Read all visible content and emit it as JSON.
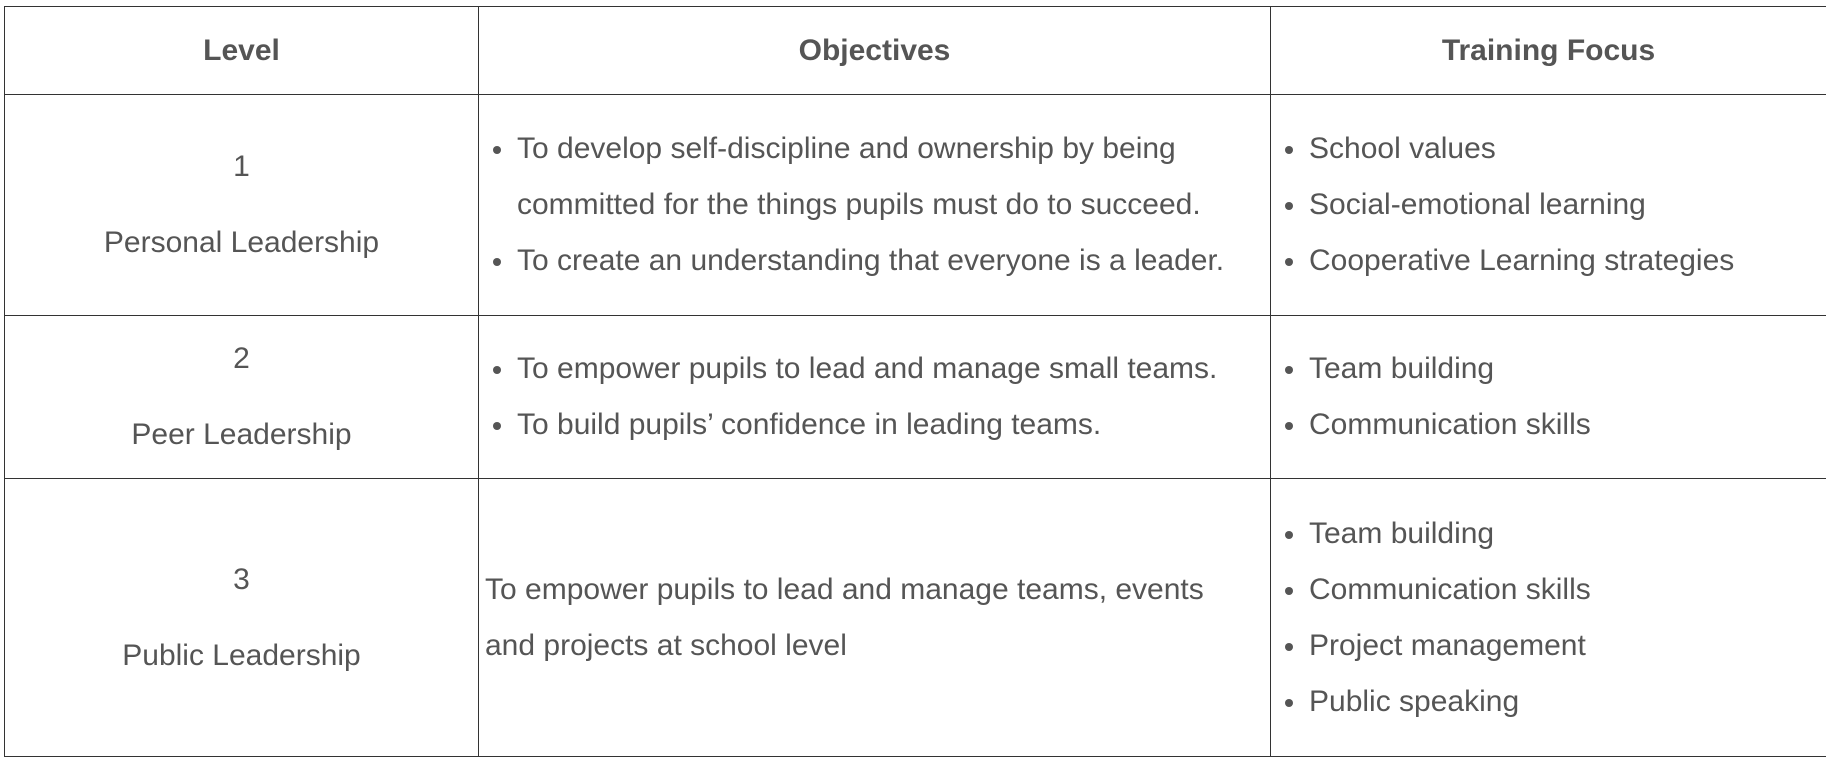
{
  "headers": {
    "level": "Level",
    "objectives": "Objectives",
    "focus": "Training Focus"
  },
  "rows": [
    {
      "num": "1",
      "name": "Personal Leadership",
      "objectives": [
        "To develop self-discipline and ownership by being committed for the things pupils must do to succeed.",
        "To create an understanding that everyone is a leader."
      ],
      "focus": [
        "School values",
        "Social-emotional learning",
        "Cooperative Learning strategies"
      ]
    },
    {
      "num": "2",
      "name": "Peer Leadership",
      "objectives": [
        "To empower pupils to lead and manage small teams.",
        "To build pupils’ confidence in leading teams."
      ],
      "focus": [
        "Team building",
        "Communication skills"
      ]
    },
    {
      "num": "3",
      "name": "Public Leadership",
      "objective_text": "To empower pupils to lead and manage teams, events and projects at school level",
      "focus": [
        "Team building",
        "Communication skills",
        "Project management",
        "Public speaking"
      ]
    }
  ]
}
